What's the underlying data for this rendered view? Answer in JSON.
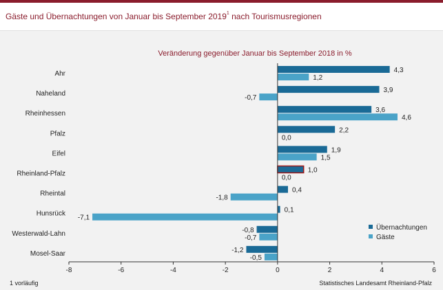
{
  "header": {
    "title": "Gäste und Übernachtungen von Januar bis September 2019",
    "title_sup": "1",
    "title_suffix": " nach Tourismusregionen"
  },
  "footnote": "1 vorläufig",
  "source": "Statistisches Landesamt Rheinland-Pfalz",
  "colors": {
    "brand": "#8a1c2c",
    "uebernachtungen": "#1a6a96",
    "gaeste": "#4aa3c8",
    "highlight_border": "#a01818"
  },
  "chart_data": {
    "type": "bar",
    "orientation": "horizontal",
    "title": "Veränderung  gegenüber Januar bis September 2018 in %",
    "categories": [
      "Ahr",
      "Naheland",
      "Rheinhessen",
      "Pfalz",
      "Eifel",
      "Rheinland-Pfalz",
      "Rheintal",
      "Hunsrück",
      "Westerwald-Lahn",
      "Mosel-Saar"
    ],
    "highlight_category": "Rheinland-Pfalz",
    "series": [
      {
        "name": "Übernachtungen",
        "values": [
          4.3,
          3.9,
          3.6,
          2.2,
          1.9,
          1.0,
          0.4,
          0.1,
          -0.8,
          -1.2
        ],
        "labels": [
          "4,3",
          "3,9",
          "3,6",
          "2,2",
          "1,9",
          "1,0",
          "0,4",
          "0,1",
          "-0,8",
          "-1,2"
        ]
      },
      {
        "name": "Gäste",
        "values": [
          1.2,
          -0.7,
          4.6,
          0.0,
          1.5,
          0.0,
          -1.8,
          -7.1,
          -0.7,
          -0.5
        ],
        "labels": [
          "1,2",
          "-0,7",
          "4,6",
          "0,0",
          "1,5",
          "0,0",
          "-1,8",
          "-7,1",
          "-0,7",
          "-0,5"
        ]
      }
    ],
    "xlim": [
      -8,
      6
    ],
    "xticks": [
      -8,
      -6,
      -4,
      -2,
      0,
      2,
      4,
      6
    ],
    "xtick_labels": [
      "-8",
      "-6",
      "-4",
      "-2",
      "0",
      "2",
      "4",
      "6"
    ],
    "legend_position": "right",
    "grid": false
  }
}
